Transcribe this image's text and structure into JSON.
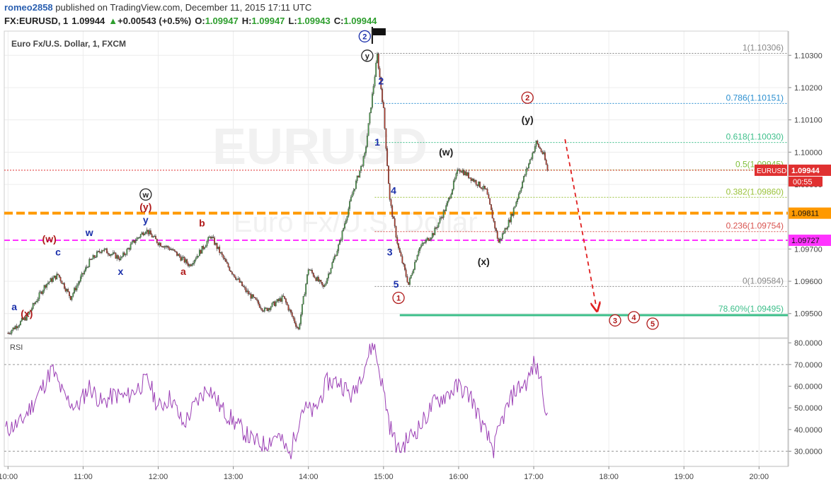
{
  "header": {
    "author": "romeo2858",
    "published": " published on TradingView.com, December 11, 2015 17:11 UTC",
    "symbol": "FX:EURUSD, 1",
    "last": "1.09944",
    "change": "+0.00543 (+0.5%)",
    "open_label": "O:",
    "open": "1.09947",
    "high_label": "H:",
    "high": "1.09947",
    "low_label": "L:",
    "low": "1.09943",
    "close_label": "C:",
    "close": "1.09944",
    "change_arrow": "up-triangle-icon"
  },
  "colors": {
    "up_candle": "#4a9a4a",
    "down_candle": "#b33a2a",
    "rsi_line": "#9b3fb5",
    "orange_line": "#ff9900",
    "magenta_line": "#ff33ff",
    "green_line": "#3dbf8a",
    "fib_0786": "#2b8fd0",
    "fib_0618": "#3dbf8a",
    "fib_05": "#7fbf3a",
    "fib_0382": "#9ac23a",
    "fib_0236": "#d9534f",
    "fib_gray": "#888888",
    "last_price": "#e03030"
  },
  "chart_data": {
    "type": "candlestick",
    "title": "Euro Fx/U.S. Dollar, 1, FXCM",
    "watermark": [
      "EURUSD",
      "Euro Fx/U.S. Dollar"
    ],
    "x_ticks": [
      "10:00",
      "11:00",
      "12:00",
      "13:00",
      "14:00",
      "15:00",
      "16:00",
      "17:00",
      "18:00",
      "19:00",
      "20:00"
    ],
    "xlim": [
      "09:57",
      "20:23"
    ],
    "y_ticks": [
      "1.10300",
      "1.10200",
      "1.10100",
      "1.10000",
      "1.09900",
      "1.09700",
      "1.09600",
      "1.09500"
    ],
    "ylim": [
      1.09425,
      1.10375
    ],
    "price_path": [
      [
        "10:00",
        1.0944
      ],
      [
        "10:15",
        1.0949
      ],
      [
        "10:30",
        1.0959
      ],
      [
        "10:40",
        1.0962
      ],
      [
        "10:50",
        1.0955
      ],
      [
        "11:05",
        1.0966
      ],
      [
        "11:15",
        1.097
      ],
      [
        "11:30",
        1.0967
      ],
      [
        "11:40",
        1.0972
      ],
      [
        "11:50",
        1.0976
      ],
      [
        "12:00",
        1.0972
      ],
      [
        "12:10",
        1.097
      ],
      [
        "12:25",
        1.0965
      ],
      [
        "12:35",
        1.097
      ],
      [
        "12:42",
        1.0974
      ],
      [
        "12:55",
        1.0965
      ],
      [
        "13:10",
        1.0957
      ],
      [
        "13:25",
        1.0951
      ],
      [
        "13:40",
        1.0955
      ],
      [
        "13:52",
        1.0945
      ],
      [
        "14:00",
        1.0964
      ],
      [
        "14:12",
        1.0958
      ],
      [
        "14:25",
        1.0972
      ],
      [
        "14:35",
        1.0987
      ],
      [
        "14:45",
        1.0999
      ],
      [
        "14:55",
        1.103
      ],
      [
        "15:00",
        1.1013
      ],
      [
        "15:05",
        1.0985
      ],
      [
        "15:12",
        1.097
      ],
      [
        "15:20",
        1.0959
      ],
      [
        "15:28",
        1.097
      ],
      [
        "15:40",
        1.0975
      ],
      [
        "15:50",
        1.0983
      ],
      [
        "16:00",
        1.0995
      ],
      [
        "16:10",
        1.0992
      ],
      [
        "16:22",
        1.0988
      ],
      [
        "16:32",
        1.0972
      ],
      [
        "16:42",
        1.098
      ],
      [
        "16:52",
        1.0992
      ],
      [
        "17:02",
        1.1003
      ],
      [
        "17:08",
        1.0999
      ],
      [
        "17:11",
        1.09944
      ]
    ],
    "last_price": 1.09944,
    "last_price_label": "EURUSD",
    "last_price_value": "1.09944",
    "countdown": "00:55",
    "horizontal_levels": [
      {
        "name": "orange-level",
        "value": 1.09811,
        "label": "1.09811"
      },
      {
        "name": "magenta-level",
        "value": 1.09727,
        "label": "1.09727"
      }
    ],
    "fib_levels": [
      {
        "ratio": "1",
        "value": 1.10306,
        "text": "1(1.10306)"
      },
      {
        "ratio": "0.786",
        "value": 1.10151,
        "text": "0.786(1.10151)"
      },
      {
        "ratio": "0.618",
        "value": 1.1003,
        "text": "0.618(1.10030)"
      },
      {
        "ratio": "0.5",
        "value": 1.09945,
        "text": "0.5(1.09945)"
      },
      {
        "ratio": "0.382",
        "value": 1.0986,
        "text": "0.382(1.09860)"
      },
      {
        "ratio": "0.236",
        "value": 1.09754,
        "text": "0.236(1.09754)"
      },
      {
        "ratio": "0",
        "value": 1.09584,
        "text": "0(1.09584)"
      }
    ],
    "extension_level": {
      "value": 1.09495,
      "text": "78.60%(1.09495)"
    },
    "projection_arrow": {
      "from": [
        "17:25",
        1.1004
      ],
      "to": [
        "17:50",
        1.0952
      ]
    },
    "wave_labels": [
      {
        "text": "a",
        "time": "10:05",
        "price": 1.0951,
        "color": "#1a2faa"
      },
      {
        "text": "(x)",
        "time": "10:15",
        "price": 1.0949,
        "color": "#b01a1a"
      },
      {
        "text": "c",
        "time": "10:40",
        "price": 1.0968,
        "color": "#1a2faa"
      },
      {
        "text": "(w)",
        "time": "10:33",
        "price": 1.0972,
        "color": "#b01a1a"
      },
      {
        "text": "w",
        "time": "11:05",
        "price": 1.0974,
        "color": "#1a2faa"
      },
      {
        "text": "x",
        "time": "11:30",
        "price": 1.0962,
        "color": "#1a2faa"
      },
      {
        "text": "y",
        "time": "11:50",
        "price": 1.0978,
        "color": "#1a2faa"
      },
      {
        "text": "(y)",
        "time": "11:50",
        "price": 1.0982,
        "color": "#b01a1a"
      },
      {
        "text": "w",
        "time": "11:50",
        "price": 1.0986,
        "color": "#222222",
        "circled": true
      },
      {
        "text": "b",
        "time": "12:35",
        "price": 1.0977,
        "color": "#b01a1a"
      },
      {
        "text": "a",
        "time": "12:20",
        "price": 1.0962,
        "color": "#b01a1a"
      },
      {
        "text": "y",
        "time": "14:47",
        "price": 1.1029,
        "color": "#222222",
        "circled": true
      },
      {
        "text": "2",
        "time": "14:45",
        "price": 1.1035,
        "color": "#1a2faa",
        "circled": true
      },
      {
        "text": "2",
        "time": "14:58",
        "price": 1.1021,
        "color": "#1a2faa"
      },
      {
        "text": "1",
        "time": "14:55",
        "price": 1.1002,
        "color": "#1a2faa"
      },
      {
        "text": "4",
        "time": "15:08",
        "price": 1.0987,
        "color": "#1a2faa"
      },
      {
        "text": "3",
        "time": "15:05",
        "price": 1.0968,
        "color": "#1a2faa"
      },
      {
        "text": "5",
        "time": "15:10",
        "price": 1.0958,
        "color": "#1a2faa"
      },
      {
        "text": "1",
        "time": "15:12",
        "price": 1.0954,
        "color": "#b01a1a",
        "circled": true
      },
      {
        "text": "(w)",
        "time": "15:50",
        "price": 1.0999,
        "color": "#222222"
      },
      {
        "text": "(x)",
        "time": "16:20",
        "price": 1.0965,
        "color": "#222222"
      },
      {
        "text": "(y)",
        "time": "16:55",
        "price": 1.1009,
        "color": "#222222"
      },
      {
        "text": "2",
        "time": "16:55",
        "price": 1.1016,
        "color": "#b01a1a",
        "circled": true
      },
      {
        "text": "3",
        "time": "18:05",
        "price": 1.0947,
        "color": "#b01a1a",
        "circled": true
      },
      {
        "text": "4",
        "time": "18:20",
        "price": 1.0948,
        "color": "#b01a1a",
        "circled": true
      },
      {
        "text": "5",
        "time": "18:35",
        "price": 1.0946,
        "color": "#b01a1a",
        "circled": true
      }
    ],
    "rsi": {
      "label": "RSI",
      "y_ticks": [
        "80.0000",
        "70.0000",
        "60.0000",
        "50.0000",
        "40.0000",
        "30.0000"
      ],
      "ylim": [
        23,
        82
      ],
      "levels": [
        70,
        30
      ],
      "path": [
        [
          "09:58",
          40
        ],
        [
          "10:10",
          43
        ],
        [
          "10:20",
          52
        ],
        [
          "10:30",
          62
        ],
        [
          "10:35",
          68
        ],
        [
          "10:45",
          55
        ],
        [
          "10:55",
          50
        ],
        [
          "11:05",
          60
        ],
        [
          "11:15",
          52
        ],
        [
          "11:25",
          56
        ],
        [
          "11:35",
          55
        ],
        [
          "11:45",
          60
        ],
        [
          "11:52",
          63
        ],
        [
          "12:00",
          50
        ],
        [
          "12:10",
          55
        ],
        [
          "12:20",
          42
        ],
        [
          "12:30",
          52
        ],
        [
          "12:40",
          60
        ],
        [
          "12:50",
          50
        ],
        [
          "13:00",
          44
        ],
        [
          "13:15",
          35
        ],
        [
          "13:25",
          33
        ],
        [
          "13:35",
          38
        ],
        [
          "13:45",
          28
        ],
        [
          "13:55",
          50
        ],
        [
          "14:05",
          48
        ],
        [
          "14:15",
          62
        ],
        [
          "14:25",
          62
        ],
        [
          "14:35",
          55
        ],
        [
          "14:45",
          70
        ],
        [
          "14:52",
          80
        ],
        [
          "15:00",
          58
        ],
        [
          "15:05",
          42
        ],
        [
          "15:12",
          30
        ],
        [
          "15:20",
          36
        ],
        [
          "15:30",
          42
        ],
        [
          "15:40",
          52
        ],
        [
          "15:50",
          56
        ],
        [
          "16:00",
          60
        ],
        [
          "16:10",
          55
        ],
        [
          "16:20",
          40
        ],
        [
          "16:28",
          31
        ],
        [
          "16:35",
          45
        ],
        [
          "16:45",
          58
        ],
        [
          "16:55",
          62
        ],
        [
          "17:00",
          70
        ],
        [
          "17:05",
          65
        ],
        [
          "17:11",
          46
        ]
      ]
    }
  }
}
